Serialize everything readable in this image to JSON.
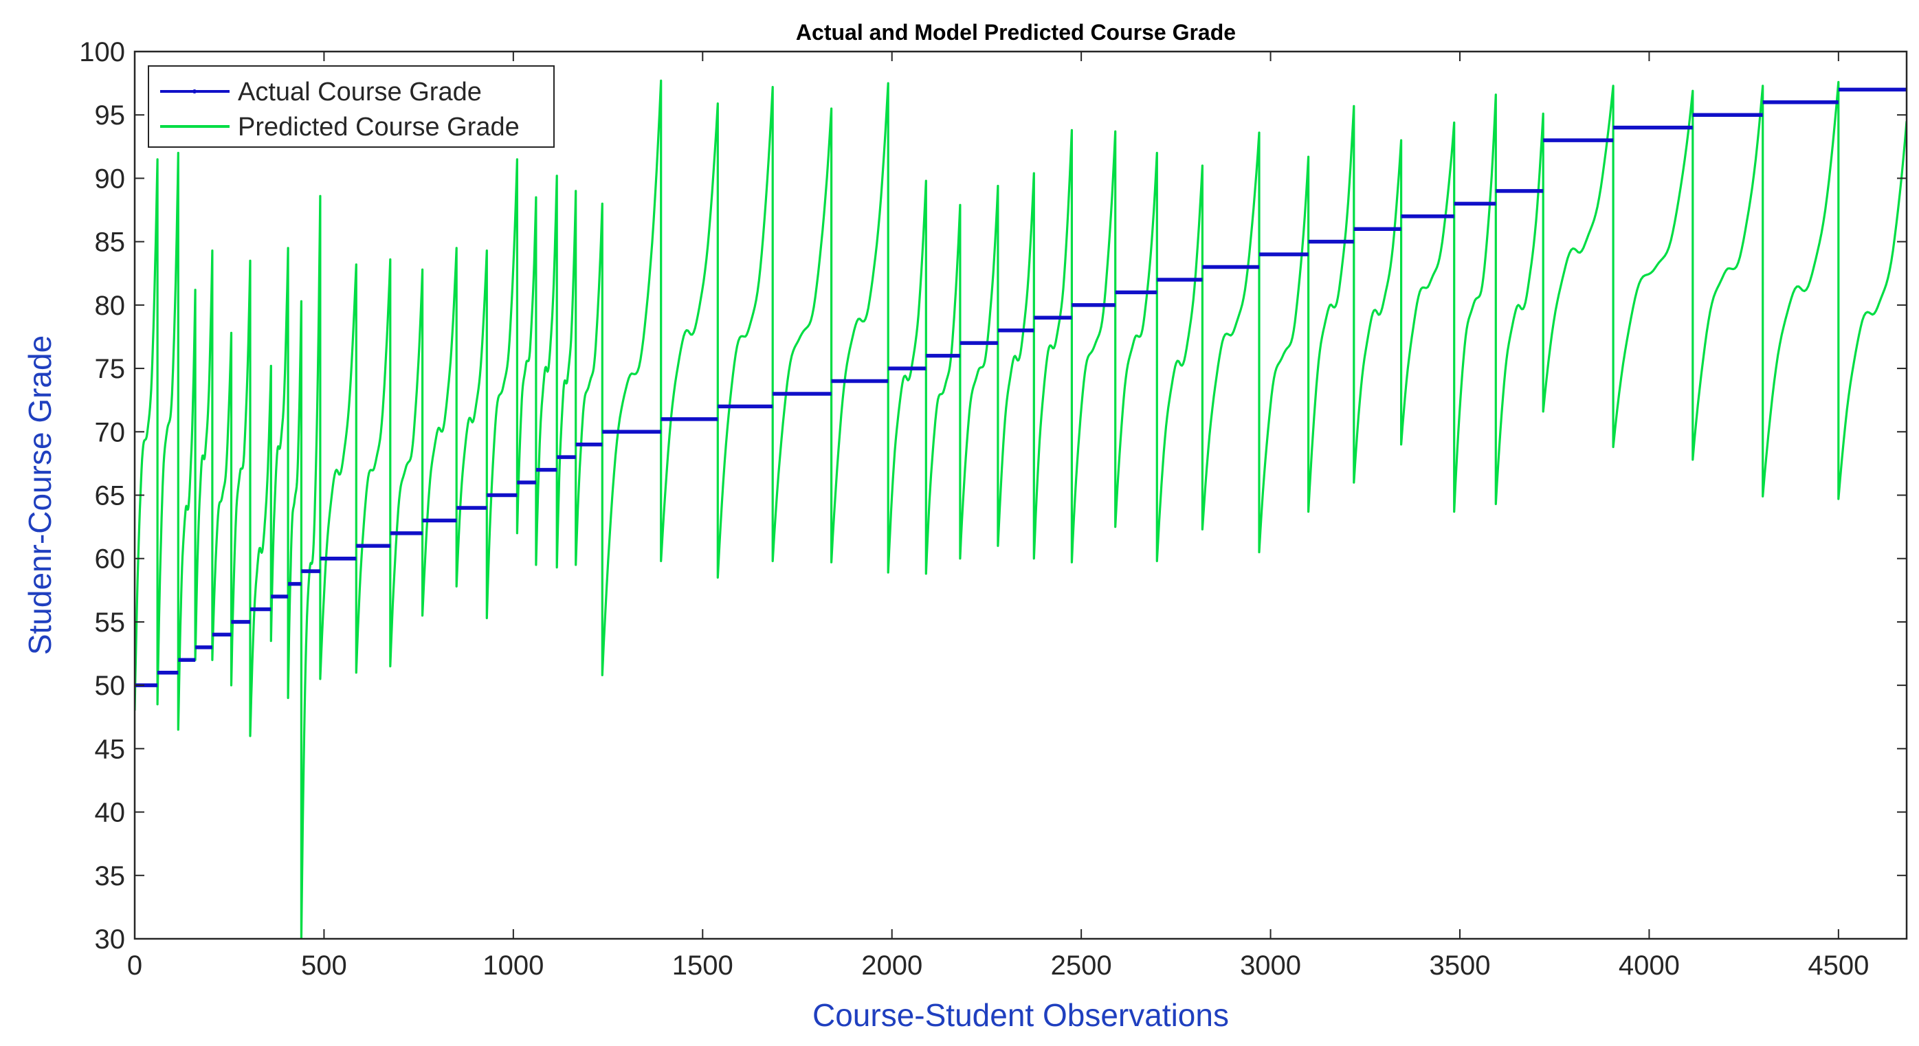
{
  "chart_data": {
    "type": "line",
    "title": "Actual and Model Predicted Course Grade",
    "xlabel": "Course-Student Observations",
    "ylabel": "Studenr-Course Grade",
    "xlim": [
      0,
      4680
    ],
    "ylim": [
      30,
      100
    ],
    "xticks": [
      0,
      500,
      1000,
      1500,
      2000,
      2500,
      3000,
      3500,
      4000,
      4500
    ],
    "yticks": [
      30,
      35,
      40,
      45,
      50,
      55,
      60,
      65,
      70,
      75,
      80,
      85,
      90,
      95,
      100
    ],
    "grid": false,
    "legend_position": "top-left",
    "colors": {
      "actual": "#1010c8",
      "predicted": "#00dd44",
      "axis": "#262626",
      "label": "#1f3fbf"
    },
    "series": [
      {
        "name": "Actual Course Grade",
        "kind": "step",
        "segments": [
          [
            0,
            60,
            50
          ],
          [
            60,
            115,
            51
          ],
          [
            115,
            160,
            52
          ],
          [
            160,
            205,
            53
          ],
          [
            205,
            255,
            54
          ],
          [
            255,
            305,
            55
          ],
          [
            305,
            360,
            56
          ],
          [
            360,
            405,
            57
          ],
          [
            405,
            440,
            58
          ],
          [
            440,
            490,
            59
          ],
          [
            490,
            585,
            60
          ],
          [
            585,
            675,
            61
          ],
          [
            675,
            760,
            62
          ],
          [
            760,
            850,
            63
          ],
          [
            850,
            930,
            64
          ],
          [
            930,
            1010,
            65
          ],
          [
            1010,
            1060,
            66
          ],
          [
            1060,
            1115,
            67
          ],
          [
            1115,
            1165,
            68
          ],
          [
            1165,
            1235,
            69
          ],
          [
            1235,
            1390,
            70
          ],
          [
            1390,
            1540,
            71
          ],
          [
            1540,
            1685,
            72
          ],
          [
            1685,
            1840,
            73
          ],
          [
            1840,
            1990,
            74
          ],
          [
            1990,
            2090,
            75
          ],
          [
            2090,
            2180,
            76
          ],
          [
            2180,
            2280,
            77
          ],
          [
            2280,
            2375,
            78
          ],
          [
            2375,
            2475,
            79
          ],
          [
            2475,
            2590,
            80
          ],
          [
            2590,
            2700,
            81
          ],
          [
            2700,
            2820,
            82
          ],
          [
            2820,
            2970,
            83
          ],
          [
            2970,
            3100,
            84
          ],
          [
            3100,
            3220,
            85
          ],
          [
            3220,
            3345,
            86
          ],
          [
            3345,
            3485,
            87
          ],
          [
            3485,
            3595,
            88
          ],
          [
            3595,
            3720,
            89
          ],
          [
            3720,
            3905,
            93
          ],
          [
            3905,
            4115,
            94
          ],
          [
            4115,
            4300,
            95
          ],
          [
            4300,
            4500,
            96
          ],
          [
            4500,
            4680,
            97
          ]
        ]
      },
      {
        "name": "Predicted Course Grade",
        "kind": "sawtooth",
        "cycles": [
          [
            0,
            60,
            48,
            91.5
          ],
          [
            60,
            115,
            48.5,
            92
          ],
          [
            115,
            160,
            46.5,
            81.2
          ],
          [
            160,
            205,
            52,
            84.3
          ],
          [
            205,
            255,
            52,
            77.8
          ],
          [
            255,
            305,
            50,
            83.5
          ],
          [
            305,
            360,
            46,
            75.2
          ],
          [
            360,
            405,
            53.5,
            84.5
          ],
          [
            405,
            440,
            49,
            80.3
          ],
          [
            440,
            490,
            30,
            88.6
          ],
          [
            490,
            585,
            50.5,
            83.2
          ],
          [
            585,
            675,
            51,
            83.6
          ],
          [
            675,
            760,
            51.5,
            82.8
          ],
          [
            760,
            850,
            55.5,
            84.5
          ],
          [
            850,
            930,
            57.8,
            84.3
          ],
          [
            930,
            1010,
            55.3,
            91.5
          ],
          [
            1010,
            1060,
            62,
            88.5
          ],
          [
            1060,
            1115,
            59.5,
            90.2
          ],
          [
            1115,
            1165,
            59.3,
            89
          ],
          [
            1165,
            1235,
            59.5,
            88
          ],
          [
            1235,
            1390,
            50.8,
            97.7
          ],
          [
            1390,
            1540,
            59.8,
            95.9
          ],
          [
            1540,
            1685,
            58.5,
            97.2
          ],
          [
            1685,
            1840,
            59.8,
            95.5
          ],
          [
            1840,
            1990,
            59.7,
            97.5
          ],
          [
            1990,
            2090,
            58.9,
            89.8
          ],
          [
            2090,
            2180,
            58.8,
            87.9
          ],
          [
            2180,
            2280,
            60,
            89.4
          ],
          [
            2280,
            2375,
            61,
            90.4
          ],
          [
            2375,
            2475,
            60,
            93.8
          ],
          [
            2475,
            2590,
            59.7,
            93.7
          ],
          [
            2590,
            2700,
            62.5,
            92
          ],
          [
            2700,
            2820,
            59.8,
            91
          ],
          [
            2820,
            2970,
            62.3,
            93.6
          ],
          [
            2970,
            3100,
            60.5,
            91.7
          ],
          [
            3100,
            3220,
            63.7,
            95.7
          ],
          [
            3220,
            3345,
            66,
            93
          ],
          [
            3345,
            3485,
            69,
            94.4
          ],
          [
            3485,
            3595,
            63.7,
            96.6
          ],
          [
            3595,
            3720,
            64.3,
            95.1
          ],
          [
            3720,
            3905,
            71.6,
            97.3
          ],
          [
            3905,
            4115,
            68.8,
            96.9
          ],
          [
            4115,
            4300,
            67.8,
            97.3
          ],
          [
            4300,
            4500,
            64.9,
            97.6
          ],
          [
            4500,
            4680,
            64.7,
            94.5
          ]
        ]
      }
    ]
  }
}
